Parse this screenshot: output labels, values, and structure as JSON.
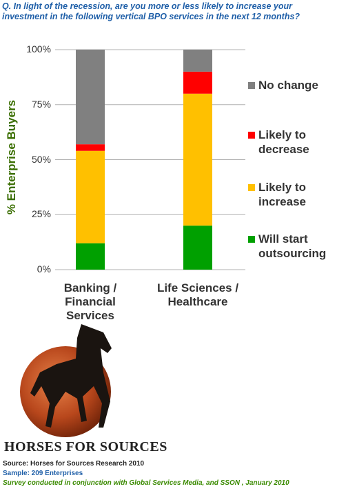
{
  "chart_data": {
    "type": "stacked_bar",
    "title": "Q. In light of the recession, are you more or less likely to increase your investment in the following vertical BPO services in the next 12 months?",
    "y_label": "% Enterprise Buyers",
    "categories": [
      "Banking / Financial Services",
      "Life Sciences / Healthcare"
    ],
    "series": [
      {
        "name": "Will start outsourcing",
        "color": "#00a000",
        "values": [
          12,
          20
        ]
      },
      {
        "name": "Likely to increase",
        "color": "#ffc000",
        "values": [
          42,
          60
        ]
      },
      {
        "name": "Likely to decrease",
        "color": "#ff0000",
        "values": [
          3,
          10
        ]
      },
      {
        "name": "No change",
        "color": "#808080",
        "values": [
          43,
          10
        ]
      }
    ],
    "ylim": [
      0,
      100
    ],
    "yticks": [
      {
        "value": 0,
        "label": "0%"
      },
      {
        "value": 25,
        "label": "25%"
      },
      {
        "value": 50,
        "label": "50%"
      },
      {
        "value": 75,
        "label": "75%"
      },
      {
        "value": 100,
        "label": "100%"
      }
    ],
    "grid": true,
    "legend": "right"
  },
  "branding": {
    "logo_text": "HORSES FOR SOURCES"
  },
  "footer": {
    "source": "Source:  Horses for Sources Research 2010",
    "sample": "Sample:  209 Enterprises",
    "note": "Survey conducted in conjunction with Global Services Media, and SSON , January 2010"
  }
}
